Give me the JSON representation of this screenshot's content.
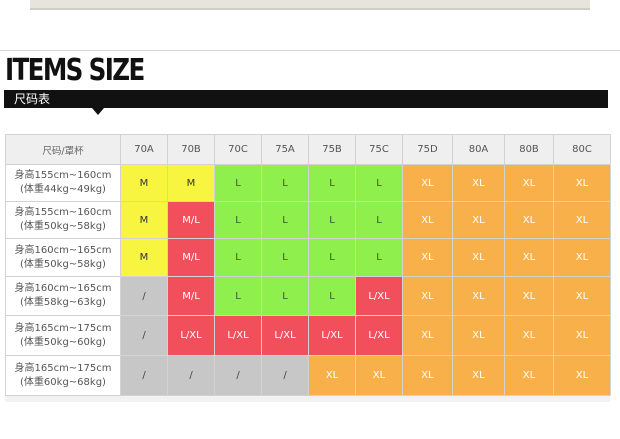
{
  "heading": "ITEMS SIZE",
  "subheading": "尺码表",
  "table": {
    "corner_label": "尺码/罩杯",
    "columns": [
      "70A",
      "70B",
      "70C",
      "75A",
      "75B",
      "75C",
      "75D",
      "80A",
      "80B",
      "80C"
    ],
    "rows": [
      {
        "height": "身高155cm~160cm",
        "weight": "(体重44kg~49kg)",
        "cells": [
          {
            "v": "M",
            "c": "yellow"
          },
          {
            "v": "M",
            "c": "yellow"
          },
          {
            "v": "L",
            "c": "green"
          },
          {
            "v": "L",
            "c": "green"
          },
          {
            "v": "L",
            "c": "green"
          },
          {
            "v": "L",
            "c": "green"
          },
          {
            "v": "XL",
            "c": "orange"
          },
          {
            "v": "XL",
            "c": "orange"
          },
          {
            "v": "XL",
            "c": "orange"
          },
          {
            "v": "XL",
            "c": "orange"
          }
        ]
      },
      {
        "height": "身高155cm~160cm",
        "weight": "(体重50kg~58kg)",
        "cells": [
          {
            "v": "M",
            "c": "yellow"
          },
          {
            "v": "M/L",
            "c": "red"
          },
          {
            "v": "L",
            "c": "green"
          },
          {
            "v": "L",
            "c": "green"
          },
          {
            "v": "L",
            "c": "green"
          },
          {
            "v": "L",
            "c": "green"
          },
          {
            "v": "XL",
            "c": "orange"
          },
          {
            "v": "XL",
            "c": "orange"
          },
          {
            "v": "XL",
            "c": "orange"
          },
          {
            "v": "XL",
            "c": "orange"
          }
        ]
      },
      {
        "height": "身高160cm~165cm",
        "weight": "(体重50kg~58kg)",
        "cells": [
          {
            "v": "M",
            "c": "yellow"
          },
          {
            "v": "M/L",
            "c": "red"
          },
          {
            "v": "L",
            "c": "green"
          },
          {
            "v": "L",
            "c": "green"
          },
          {
            "v": "L",
            "c": "green"
          },
          {
            "v": "L",
            "c": "green"
          },
          {
            "v": "XL",
            "c": "orange"
          },
          {
            "v": "XL",
            "c": "orange"
          },
          {
            "v": "XL",
            "c": "orange"
          },
          {
            "v": "XL",
            "c": "orange"
          }
        ]
      },
      {
        "height": "身高160cm~165cm",
        "weight": "(体重58kg~63kg)",
        "cells": [
          {
            "v": "/",
            "c": "gray"
          },
          {
            "v": "M/L",
            "c": "red"
          },
          {
            "v": "L",
            "c": "green"
          },
          {
            "v": "L",
            "c": "green"
          },
          {
            "v": "L",
            "c": "green"
          },
          {
            "v": "L/XL",
            "c": "red"
          },
          {
            "v": "XL",
            "c": "orange"
          },
          {
            "v": "XL",
            "c": "orange"
          },
          {
            "v": "XL",
            "c": "orange"
          },
          {
            "v": "XL",
            "c": "orange"
          }
        ]
      },
      {
        "height": "身高165cm~175cm",
        "weight": "(体重50kg~60kg)",
        "cells": [
          {
            "v": "/",
            "c": "gray"
          },
          {
            "v": "L/XL",
            "c": "red"
          },
          {
            "v": "L/XL",
            "c": "red"
          },
          {
            "v": "L/XL",
            "c": "red"
          },
          {
            "v": "L/XL",
            "c": "red"
          },
          {
            "v": "L/XL",
            "c": "red"
          },
          {
            "v": "XL",
            "c": "orange"
          },
          {
            "v": "XL",
            "c": "orange"
          },
          {
            "v": "XL",
            "c": "orange"
          },
          {
            "v": "XL",
            "c": "orange"
          }
        ]
      },
      {
        "height": "身高165cm~175cm",
        "weight": "(体重60kg~68kg)",
        "cells": [
          {
            "v": "/",
            "c": "gray"
          },
          {
            "v": "/",
            "c": "gray"
          },
          {
            "v": "/",
            "c": "gray"
          },
          {
            "v": "/",
            "c": "gray"
          },
          {
            "v": "XL",
            "c": "orange"
          },
          {
            "v": "XL",
            "c": "orange"
          },
          {
            "v": "XL",
            "c": "orange"
          },
          {
            "v": "XL",
            "c": "orange"
          },
          {
            "v": "XL",
            "c": "orange"
          },
          {
            "v": "XL",
            "c": "orange"
          }
        ]
      }
    ]
  },
  "colors": {
    "yellow": "#f7f540",
    "red": "#f24f5c",
    "green": "#8eef4d",
    "orange": "#f8b14a",
    "gray": "#c7c7c7"
  }
}
